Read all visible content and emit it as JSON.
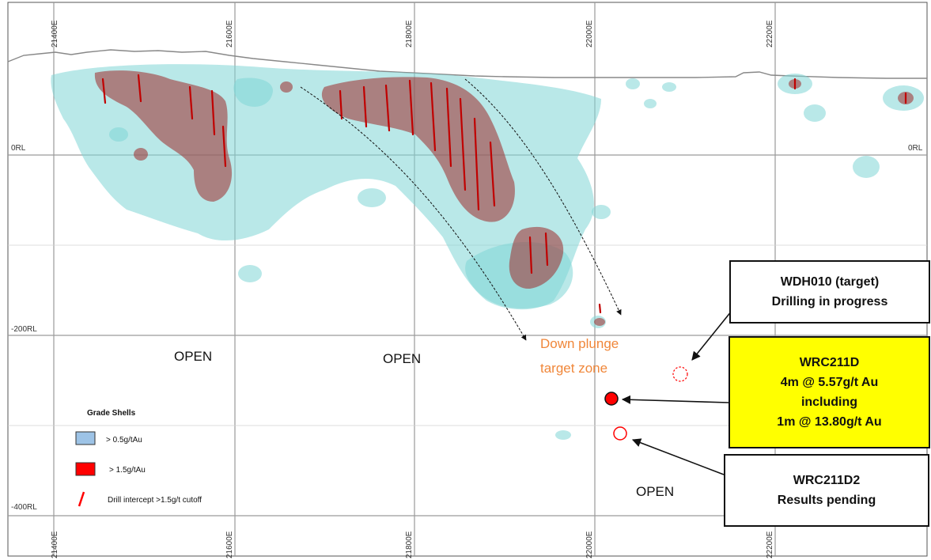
{
  "eastings": [
    "21400E",
    "21600E",
    "21800E",
    "22000E",
    "22200E"
  ],
  "elevations": {
    "zero": "0RL",
    "minus200": "-200RL",
    "minus400": "-400RL"
  },
  "open_labels": [
    "OPEN",
    "OPEN",
    "OPEN"
  ],
  "target_zone": {
    "line1": "Down plunge",
    "line2": "target zone",
    "color": "#f0873a"
  },
  "callouts": {
    "wdh010": {
      "line1": "WDH010 (target)",
      "line2": "Drilling in progress"
    },
    "wrc211d": {
      "line1": "WRC211D",
      "line2": "4m @ 5.57g/t Au",
      "line3": "including",
      "line4": "1m @ 13.80g/t Au",
      "background": "#ffff00"
    },
    "wrc211d2": {
      "line1": "WRC211D2",
      "line2": "Results pending"
    }
  },
  "legend": {
    "title": "Grade Shells",
    "items": [
      {
        "label": "> 0.5g/tAu",
        "color": "#9dc3e6"
      },
      {
        "label": "> 1.5g/tAu",
        "color": "#ff0000"
      },
      {
        "label": "Drill intercept >1.5g/t cutoff",
        "color": "#ff0000"
      }
    ]
  },
  "colors": {
    "low_grade_shell": "#7fd6d6",
    "high_grade_shell": "#a03a3a",
    "drill_intercept": "#c00000",
    "grid": "#9a9a9a",
    "arrow": "#111111"
  }
}
